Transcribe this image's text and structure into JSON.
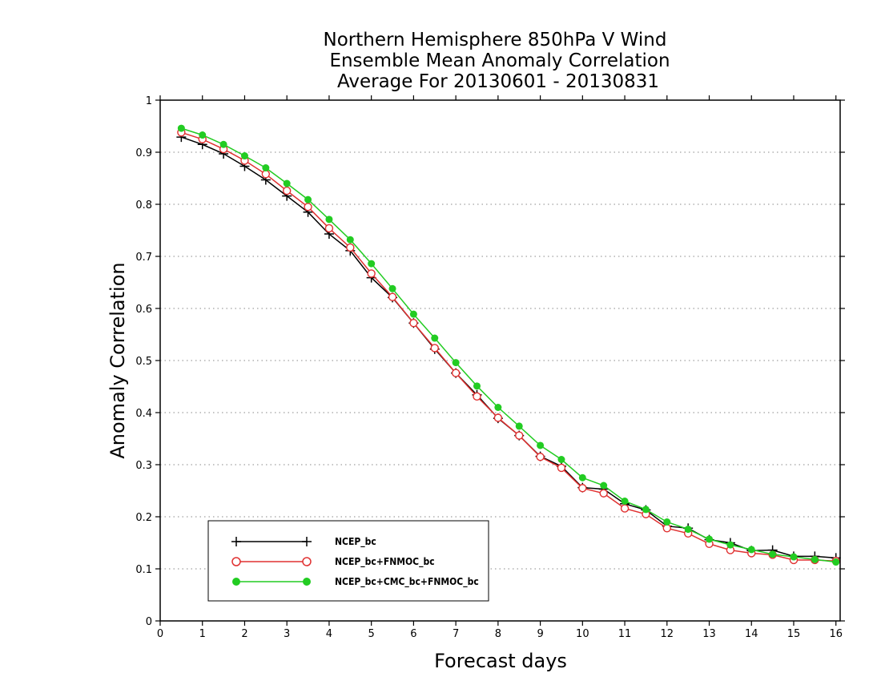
{
  "chart_data": {
    "type": "line",
    "title": [
      "Northern Hemisphere 850hPa V Wind",
      "Ensemble Mean Anomaly Correlation",
      "Average For 20130601 - 20130831"
    ],
    "xlabel": "Forecast days",
    "ylabel": "Anomaly Correlation",
    "xlim": [
      0,
      16.1
    ],
    "ylim": [
      0,
      1
    ],
    "x_ticks": [
      "0",
      "1",
      "2",
      "3",
      "4",
      "5",
      "6",
      "7",
      "8",
      "9",
      "10",
      "11",
      "12",
      "13",
      "14",
      "15",
      "16"
    ],
    "y_ticks": [
      "0",
      "0.1",
      "0.2",
      "0.3",
      "0.4",
      "0.5",
      "0.6",
      "0.7",
      "0.8",
      "0.9",
      "1"
    ],
    "grid": "horizontal-dotted",
    "legend_position": "bottom-left",
    "x": [
      0.5,
      1,
      1.5,
      2,
      2.5,
      3,
      3.5,
      4,
      4.5,
      5,
      5.5,
      6,
      6.5,
      7,
      7.5,
      8,
      8.5,
      9,
      9.5,
      10,
      10.5,
      11,
      11.5,
      12,
      12.5,
      13,
      13.5,
      14,
      14.5,
      15,
      15.5,
      16
    ],
    "series": [
      {
        "name": "NCEP_bc",
        "color": "#000000",
        "marker": "plus",
        "values": [
          0.929,
          0.915,
          0.897,
          0.873,
          0.847,
          0.816,
          0.785,
          0.743,
          0.711,
          0.659,
          0.621,
          0.572,
          0.522,
          0.476,
          0.434,
          0.389,
          0.356,
          0.316,
          0.297,
          0.256,
          0.253,
          0.225,
          0.213,
          0.182,
          0.178,
          0.156,
          0.15,
          0.135,
          0.136,
          0.124,
          0.124,
          0.121
        ]
      },
      {
        "name": "NCEP_bc+FNMOC_bc",
        "color": "#e03030",
        "marker": "open-circle",
        "values": [
          0.938,
          0.925,
          0.906,
          0.884,
          0.858,
          0.826,
          0.795,
          0.754,
          0.717,
          0.667,
          0.622,
          0.572,
          0.524,
          0.476,
          0.431,
          0.39,
          0.356,
          0.315,
          0.294,
          0.255,
          0.245,
          0.216,
          0.205,
          0.178,
          0.168,
          0.148,
          0.136,
          0.13,
          0.127,
          0.117,
          0.117,
          0.115
        ]
      },
      {
        "name": "NCEP_bc+CMC_bc+FNMOC_bc",
        "color": "#22cc22",
        "marker": "filled-circle",
        "values": [
          0.946,
          0.933,
          0.915,
          0.893,
          0.87,
          0.84,
          0.809,
          0.771,
          0.732,
          0.686,
          0.638,
          0.589,
          0.543,
          0.496,
          0.451,
          0.41,
          0.374,
          0.337,
          0.31,
          0.275,
          0.26,
          0.23,
          0.214,
          0.19,
          0.176,
          0.157,
          0.146,
          0.137,
          0.128,
          0.123,
          0.118,
          0.113
        ]
      }
    ]
  }
}
